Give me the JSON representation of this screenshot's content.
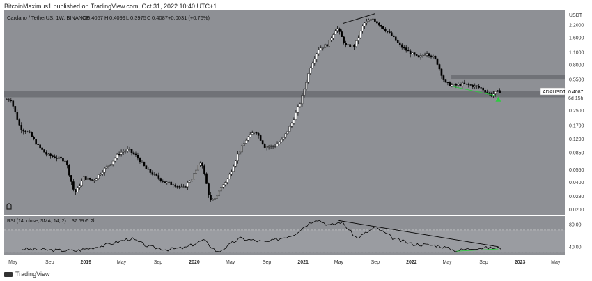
{
  "attribution": "BitcoinMaximus1 published on TradingView.com, Oct 31, 2022 10:40 UTC+1",
  "header": {
    "symbol": "Cardano / TetherUS, 1W, BINANCE",
    "o_label": "O",
    "o": "0.4057",
    "h_label": "H",
    "h": "0.4099",
    "l_label": "L",
    "l": "0.3975",
    "c_label": "C",
    "c": "0.4087",
    "change": "+0.0031 (+0.76%)"
  },
  "price_label": {
    "ticker": "ADAUSDT",
    "price": "0.4087",
    "countdown": "6d 15h"
  },
  "rsi_header": {
    "title": "RSI (14, close, SMA, 14, 2)",
    "value": "37.69",
    "extra1": "Ø",
    "extra2": "Ø"
  },
  "footer": {
    "brand": "TradingView"
  },
  "colors": {
    "bg_main": "#8e9095",
    "bg_rsi": "#8e9095",
    "candle_up": "#ffffff",
    "candle_down": "#000000",
    "zone": "#6b6d72",
    "green": "#2ecc40",
    "trend": "#000000"
  },
  "chart_data": [
    {
      "type": "candlestick",
      "title": "Cardano / TetherUS, 1W, BINANCE",
      "y_unit": "USDT",
      "y_scale": "log",
      "ylim": [
        0.0175,
        3.2
      ],
      "y_ticks": [
        "2.2000",
        "1.6000",
        "1.1000",
        "0.8000",
        "0.5500",
        "0.4087",
        "0.2500",
        "0.1700",
        "0.1200",
        "0.0850",
        "0.0550",
        "0.0400",
        "0.0280",
        "0.0200"
      ],
      "y_tick_values": [
        2.2,
        1.6,
        1.1,
        0.8,
        0.55,
        0.4087,
        0.25,
        0.17,
        0.12,
        0.085,
        0.055,
        0.04,
        0.028,
        0.02
      ],
      "x_ticks": [
        "May",
        "Sep",
        "2019",
        "May",
        "Sep",
        "2020",
        "May",
        "Sep",
        "2021",
        "May",
        "Sep",
        "2022",
        "May",
        "Sep",
        "2023",
        "May"
      ],
      "x_tick_dates": [
        "2018-05",
        "2018-09",
        "2019-01",
        "2019-05",
        "2019-09",
        "2020-01",
        "2020-05",
        "2020-09",
        "2021-01",
        "2021-05",
        "2021-09",
        "2022-01",
        "2022-05",
        "2022-09",
        "2023-01",
        "2023-05"
      ],
      "x_range": [
        "2018-04",
        "2023-06"
      ],
      "price_path": [
        [
          "2018-04-10",
          0.33
        ],
        [
          "2018-05-01",
          0.33
        ],
        [
          "2018-06-01",
          0.16
        ],
        [
          "2018-07-01",
          0.14
        ],
        [
          "2018-08-01",
          0.1
        ],
        [
          "2018-09-01",
          0.08
        ],
        [
          "2018-10-01",
          0.075
        ],
        [
          "2018-11-01",
          0.07
        ],
        [
          "2018-12-01",
          0.03
        ],
        [
          "2019-01-01",
          0.045
        ],
        [
          "2019-02-01",
          0.042
        ],
        [
          "2019-03-01",
          0.052
        ],
        [
          "2019-04-01",
          0.065
        ],
        [
          "2019-05-01",
          0.085
        ],
        [
          "2019-06-01",
          0.092
        ],
        [
          "2019-07-01",
          0.075
        ],
        [
          "2019-08-01",
          0.055
        ],
        [
          "2019-09-01",
          0.047
        ],
        [
          "2019-10-01",
          0.04
        ],
        [
          "2019-11-01",
          0.038
        ],
        [
          "2019-12-01",
          0.034
        ],
        [
          "2020-01-01",
          0.045
        ],
        [
          "2020-02-01",
          0.07
        ],
        [
          "2020-03-01",
          0.025
        ],
        [
          "2020-03-15",
          0.025
        ],
        [
          "2020-04-01",
          0.033
        ],
        [
          "2020-05-01",
          0.045
        ],
        [
          "2020-06-01",
          0.08
        ],
        [
          "2020-07-01",
          0.12
        ],
        [
          "2020-08-01",
          0.15
        ],
        [
          "2020-09-01",
          0.1
        ],
        [
          "2020-10-01",
          0.1
        ],
        [
          "2020-11-01",
          0.12
        ],
        [
          "2020-12-01",
          0.18
        ],
        [
          "2021-01-01",
          0.32
        ],
        [
          "2021-02-01",
          0.75
        ],
        [
          "2021-03-01",
          1.2
        ],
        [
          "2021-04-01",
          1.35
        ],
        [
          "2021-05-01",
          2.1
        ],
        [
          "2021-06-01",
          1.3
        ],
        [
          "2021-07-01",
          1.3
        ],
        [
          "2021-08-01",
          2.3
        ],
        [
          "2021-09-01",
          2.6
        ],
        [
          "2021-10-01",
          2.1
        ],
        [
          "2021-11-01",
          1.7
        ],
        [
          "2021-12-01",
          1.3
        ],
        [
          "2022-01-01",
          1.1
        ],
        [
          "2022-02-01",
          0.95
        ],
        [
          "2022-03-01",
          1.1
        ],
        [
          "2022-04-01",
          0.9
        ],
        [
          "2022-05-01",
          0.5
        ],
        [
          "2022-06-01",
          0.47
        ],
        [
          "2022-07-01",
          0.49
        ],
        [
          "2022-08-01",
          0.47
        ],
        [
          "2022-09-01",
          0.44
        ],
        [
          "2022-10-01",
          0.37
        ],
        [
          "2022-10-31",
          0.4087
        ]
      ],
      "horizontal_zones": [
        {
          "low": 0.35,
          "high": 0.41
        },
        {
          "low": 0.55,
          "high": 0.62
        }
      ],
      "trendlines": [
        {
          "x": [
            "2021-05-15",
            "2021-09-01"
          ],
          "y": [
            2.3,
            2.95
          ],
          "color": "black"
        },
        {
          "x": [
            "2022-05-20",
            "2022-10-20"
          ],
          "y": [
            0.46,
            0.36
          ],
          "color": "green"
        }
      ],
      "markers": [
        {
          "type": "up-arrow",
          "x": "2022-10-20",
          "y": 0.33,
          "color": "green"
        }
      ]
    },
    {
      "type": "line",
      "title": "RSI (14, close, SMA, 14, 2)",
      "ylim": [
        26,
        95
      ],
      "y_ticks": [
        "80.00",
        "40.00"
      ],
      "y_tick_values": [
        80,
        40
      ],
      "bands": [
        {
          "low": 30,
          "high": 70
        }
      ],
      "rsi_path": [
        [
          "2018-06-01",
          36
        ],
        [
          "2018-09-01",
          34
        ],
        [
          "2018-12-01",
          33
        ],
        [
          "2019-03-01",
          42
        ],
        [
          "2019-06-01",
          55
        ],
        [
          "2019-08-01",
          40
        ],
        [
          "2019-10-01",
          35
        ],
        [
          "2019-12-01",
          38
        ],
        [
          "2020-02-01",
          52
        ],
        [
          "2020-03-20",
          30
        ],
        [
          "2020-06-01",
          55
        ],
        [
          "2020-09-01",
          48
        ],
        [
          "2020-12-01",
          62
        ],
        [
          "2021-01-15",
          80
        ],
        [
          "2021-02-15",
          90
        ],
        [
          "2021-04-01",
          78
        ],
        [
          "2021-05-10",
          85
        ],
        [
          "2021-07-01",
          55
        ],
        [
          "2021-09-01",
          75
        ],
        [
          "2021-11-01",
          55
        ],
        [
          "2022-01-01",
          45
        ],
        [
          "2022-04-01",
          42
        ],
        [
          "2022-06-01",
          33
        ],
        [
          "2022-08-01",
          38
        ],
        [
          "2022-10-31",
          37.69
        ]
      ],
      "trendlines": [
        {
          "x": [
            "2021-05-01",
            "2022-10-20"
          ],
          "y": [
            87,
            40
          ],
          "color": "black"
        },
        {
          "x": [
            "2022-06-01",
            "2022-10-20"
          ],
          "y": [
            32,
            36
          ],
          "color": "green"
        }
      ]
    }
  ]
}
